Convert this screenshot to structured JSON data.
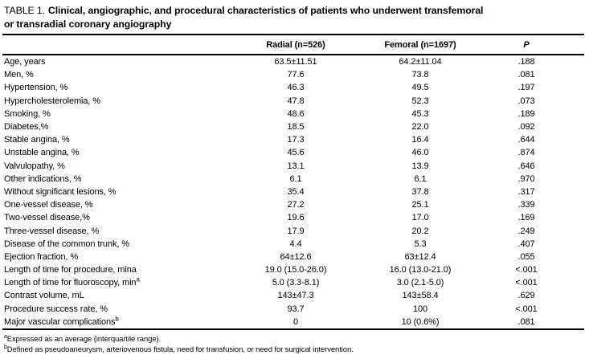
{
  "title": {
    "prefix": "TABLE 1.",
    "line1": "Clinical, angiographic, and procedural characteristics of patients who underwent transfemoral",
    "line2": "or transradial coronary angiography"
  },
  "table": {
    "columns": {
      "radial": "Radial (n=526)",
      "femoral": "Femoral (n=1697)",
      "p": "P"
    },
    "rows": [
      {
        "label": "Age, years",
        "radial": "63.5±11.51",
        "femoral": "64.2±11.04",
        "p": ".188"
      },
      {
        "label": "Men, %",
        "radial": "77.6",
        "femoral": "73.8",
        "p": ".081"
      },
      {
        "label": "Hypertension, %",
        "radial": "46.3",
        "femoral": "49.5",
        "p": ".197"
      },
      {
        "label": "Hypercholesterolemia, %",
        "radial": "47.8",
        "femoral": "52.3",
        "p": ".073"
      },
      {
        "label": "Smoking, %",
        "radial": "48.6",
        "femoral": "45.3",
        "p": ".189"
      },
      {
        "label": "Diabetes,%",
        "radial": "18.5",
        "femoral": "22.0",
        "p": ".092"
      },
      {
        "label": "Stable angina, %",
        "radial": "17.3",
        "femoral": "16.4",
        "p": ".644"
      },
      {
        "label": "Unstable angina, %",
        "radial": "45.6",
        "femoral": "46.0",
        "p": ".874"
      },
      {
        "label": "Valvulopathy, %",
        "radial": "13.1",
        "femoral": "13.9",
        "p": ".646"
      },
      {
        "label": "Other indications, %",
        "radial": "6.1",
        "femoral": "6.1",
        "p": ".970"
      },
      {
        "label": "Without significant lesions, %",
        "radial": "35.4",
        "femoral": "37.8",
        "p": ".317"
      },
      {
        "label": "One-vessel disease, %",
        "radial": "27.2",
        "femoral": "25.1",
        "p": ".339"
      },
      {
        "label": "Two-vessel disease,%",
        "radial": "19.6",
        "femoral": "17.0",
        "p": ".169"
      },
      {
        "label": "Three-vessel disease, %",
        "radial": "17.9",
        "femoral": "20.2",
        "p": ".249"
      },
      {
        "label": "Disease of the common trunk, %",
        "radial": "4.4",
        "femoral": "5.3",
        "p": ".407"
      },
      {
        "label": "Ejection fraction, %",
        "radial": "64±12.6",
        "femoral": "63±12.4",
        "p": ".055"
      },
      {
        "label": "Length of time for procedure, mina",
        "radial": "19.0 (15.0-26.0)",
        "femoral": "16.0 (13.0-21.0)",
        "p": "<.001"
      },
      {
        "label": "Length of time for fluoroscopy, min",
        "label_sup": "a",
        "radial": "5.0 (3.3-8.1)",
        "femoral": "3.0 (2.1-5.0)",
        "p": "<.001"
      },
      {
        "label": "Contrast volume, mL",
        "radial": "143±47.3",
        "femoral": "143±58.4",
        "p": ".629"
      },
      {
        "label": "Procedure success rate, %",
        "radial": "93.7",
        "femoral": "100",
        "p": "<.001"
      },
      {
        "label": "Major vascular complications",
        "label_sup": "b",
        "radial": "0",
        "femoral": "10 (0.6%)",
        "p": ".081"
      }
    ]
  },
  "footnotes": [
    {
      "sup": "a",
      "text": "Expressed as an average (interquartile range)."
    },
    {
      "sup": "b",
      "text": "Defined as pseudoaneurysm, arteriovenous fistula, need for transfusion, or need for surgical intervention."
    }
  ]
}
